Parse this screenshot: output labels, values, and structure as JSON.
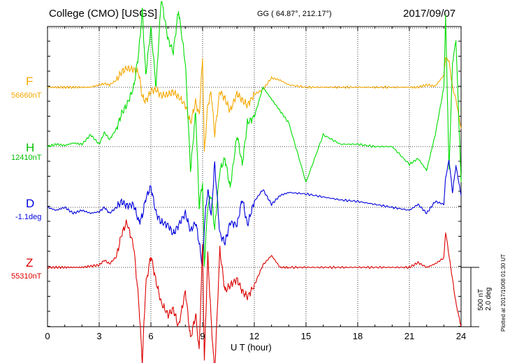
{
  "header": {
    "title": "College (CMO)  [USGS]",
    "coords": "GG ( 64.87°, 212.17°)",
    "date": "2017/09/07"
  },
  "scale": {
    "line1": "500 nT",
    "line2": "2.0 deg"
  },
  "plotted": "Plotted at 2017/10/08 01:30 UT",
  "colors": {
    "F": "#f5a800",
    "H": "#00dd00",
    "D": "#0000dd",
    "Z": "#dd0000"
  },
  "chart_data": {
    "type": "line",
    "title": "College (CMO)  [USGS]",
    "xlabel": "U T (hour)",
    "ylabel": "",
    "xlim": [
      0,
      24
    ],
    "xticks": [
      "0",
      "3",
      "6",
      "9",
      "12",
      "15",
      "18",
      "21",
      "24"
    ],
    "grid": true,
    "scale_bar": "500 nT / 2.0 deg",
    "series": [
      {
        "name": "F",
        "baseline": "56660nT",
        "color": "#f5a800",
        "x": [
          0,
          0.5,
          1,
          1.5,
          2,
          2.5,
          3,
          3.3,
          3.6,
          4,
          4.3,
          4.6,
          5,
          5.3,
          5.5,
          5.7,
          6,
          6.3,
          6.6,
          7,
          7.3,
          7.6,
          8,
          8.3,
          8.6,
          8.8,
          9,
          9.1,
          9.3,
          9.5,
          9.7,
          10,
          10.3,
          10.6,
          11,
          11.3,
          11.6,
          12,
          12.5,
          13,
          13.5,
          14,
          15,
          16,
          17,
          18,
          19,
          20,
          21,
          21.5,
          22,
          22.5,
          23,
          23.1,
          23.3,
          23.5,
          23.7,
          24
        ],
        "values": [
          0,
          0,
          0,
          0,
          0,
          0,
          20,
          30,
          20,
          60,
          130,
          160,
          150,
          120,
          -80,
          -120,
          -30,
          -20,
          -70,
          -60,
          -40,
          -80,
          -150,
          -300,
          -120,
          -240,
          250,
          -550,
          -150,
          -40,
          -400,
          -30,
          -100,
          -200,
          -50,
          -110,
          -150,
          -60,
          -20,
          80,
          60,
          20,
          0,
          0,
          0,
          0,
          0,
          0,
          0,
          0,
          20,
          10,
          100,
          250,
          220,
          0,
          -100,
          -350
        ]
      },
      {
        "name": "H",
        "baseline": "12410nT",
        "color": "#00dd00",
        "x": [
          0,
          0.5,
          1,
          1.5,
          2,
          2.5,
          3,
          3.3,
          3.6,
          4,
          4.3,
          4.6,
          5,
          5.3,
          5.5,
          5.7,
          6,
          6.3,
          6.6,
          7,
          7.3,
          7.6,
          8,
          8.3,
          8.6,
          8.8,
          9,
          9.1,
          9.3,
          9.5,
          9.7,
          10,
          10.3,
          10.6,
          11,
          11.3,
          11.6,
          12,
          12.5,
          13,
          13.5,
          14,
          15,
          16,
          17,
          18,
          19,
          20,
          21,
          21.5,
          22,
          22.5,
          23,
          23.1,
          23.3,
          23.5,
          23.7,
          24
        ],
        "values": [
          0,
          20,
          10,
          30,
          20,
          100,
          20,
          120,
          60,
          150,
          280,
          350,
          500,
          800,
          1150,
          600,
          1000,
          500,
          1250,
          900,
          800,
          1150,
          700,
          -200,
          300,
          -500,
          -300,
          -1000,
          -500,
          -400,
          -700,
          -200,
          -100,
          -350,
          100,
          -150,
          200,
          250,
          500,
          400,
          300,
          200,
          -300,
          100,
          20,
          20,
          0,
          0,
          -150,
          -100,
          -200,
          100,
          500,
          1100,
          -200,
          700,
          900,
          -300
        ]
      },
      {
        "name": "D",
        "baseline": "-1.1deg",
        "color": "#0000dd",
        "x": [
          0,
          0.5,
          1,
          1.5,
          2,
          2.5,
          3,
          3.3,
          3.6,
          4,
          4.3,
          4.6,
          5,
          5.3,
          5.5,
          5.7,
          6,
          6.3,
          6.6,
          7,
          7.3,
          7.6,
          8,
          8.3,
          8.6,
          8.8,
          9,
          9.1,
          9.3,
          9.5,
          9.7,
          10,
          10.3,
          10.6,
          11,
          11.3,
          11.6,
          12,
          12.5,
          13,
          13.5,
          14,
          15,
          16,
          17,
          18,
          19,
          20,
          21,
          21.5,
          22,
          22.5,
          23,
          23.1,
          23.3,
          23.5,
          23.7,
          24
        ],
        "values": [
          0,
          -0.1,
          0,
          -0.2,
          -0.1,
          -0.2,
          -0.15,
          0,
          -0.2,
          0,
          0.2,
          0.05,
          0.1,
          -0.5,
          -0.3,
          0.3,
          0.7,
          -0.2,
          -0.5,
          -0.6,
          -0.9,
          -0.6,
          -0.2,
          -0.8,
          -0.5,
          -1.2,
          -2.0,
          -0.6,
          0.6,
          -0.3,
          1.5,
          -0.9,
          -1.2,
          -0.5,
          -0.6,
          0.3,
          -0.6,
          0.2,
          0.6,
          0.1,
          0.4,
          0.5,
          0.45,
          0.35,
          0.25,
          0.2,
          0.1,
          0.0,
          -0.1,
          0.1,
          -0.2,
          0.2,
          0.1,
          1.0,
          1.6,
          0.5,
          1.4,
          0.4
        ]
      },
      {
        "name": "Z",
        "baseline": "55310nT",
        "color": "#dd0000",
        "x": [
          0,
          0.5,
          1,
          1.5,
          2,
          2.5,
          3,
          3.3,
          3.6,
          4,
          4.3,
          4.6,
          5,
          5.3,
          5.5,
          5.7,
          6,
          6.3,
          6.6,
          7,
          7.3,
          7.6,
          8,
          8.3,
          8.6,
          8.8,
          9,
          9.1,
          9.3,
          9.5,
          9.7,
          10,
          10.3,
          10.6,
          11,
          11.3,
          11.6,
          12,
          12.5,
          13,
          13.5,
          14,
          15,
          16,
          17,
          18,
          19,
          20,
          21,
          21.5,
          22,
          22.5,
          23,
          23.1,
          23.3,
          23.5,
          23.7,
          24
        ],
        "values": [
          0,
          0,
          0,
          0,
          0,
          10,
          20,
          60,
          30,
          90,
          280,
          380,
          180,
          -300,
          -800,
          -150,
          100,
          -120,
          -300,
          -400,
          -350,
          -500,
          -200,
          -600,
          -400,
          -700,
          200,
          -800,
          100,
          -450,
          -900,
          150,
          -200,
          -150,
          -100,
          -200,
          -250,
          -150,
          20,
          100,
          0,
          0,
          0,
          0,
          0,
          0,
          0,
          0,
          0,
          40,
          0,
          30,
          80,
          300,
          100,
          -100,
          -300,
          -500
        ]
      }
    ]
  }
}
